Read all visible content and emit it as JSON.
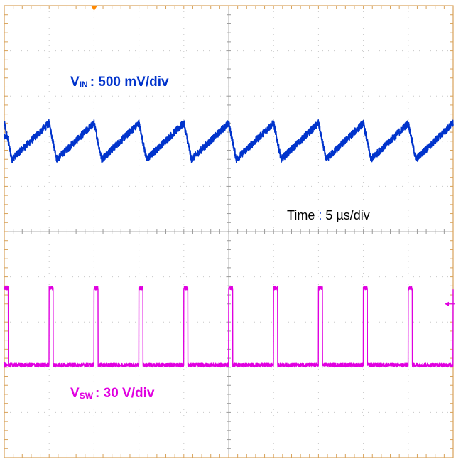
{
  "chart_data": {
    "type": "line",
    "title": "",
    "grid": true,
    "divisions": {
      "x": 10,
      "y": 10
    },
    "x_per_div_us": 5,
    "time_label": {
      "prefix": "Time",
      "sep": ":",
      "value": "5 µs/div"
    },
    "series": [
      {
        "name": "VIN",
        "label_main": "V",
        "label_sub": "IN",
        "label_rest": ": 500 mV/div",
        "color": "#0033cc",
        "units_per_div": "500 mV",
        "waveform": "sawtooth",
        "period_us": 5,
        "first_peak_us": 5,
        "high_div": 7.4,
        "low_div": 6.6,
        "noise_div": 0.08
      },
      {
        "name": "VSW",
        "label_main": "V",
        "label_sub": "SW",
        "label_rest": ": 30 V/div",
        "color": "#e000e0",
        "units_per_div": "30 V",
        "waveform": "pulse",
        "period_us": 5,
        "first_pulse_us": 5,
        "pulse_width_us": 0.45,
        "high_div": 3.75,
        "low_div": 2.05,
        "noise_div": 0.04
      }
    ],
    "trigger_marker_color": "#ff8800",
    "grid_color": "#c8c8c8",
    "frame_color": "#d8a25a"
  }
}
